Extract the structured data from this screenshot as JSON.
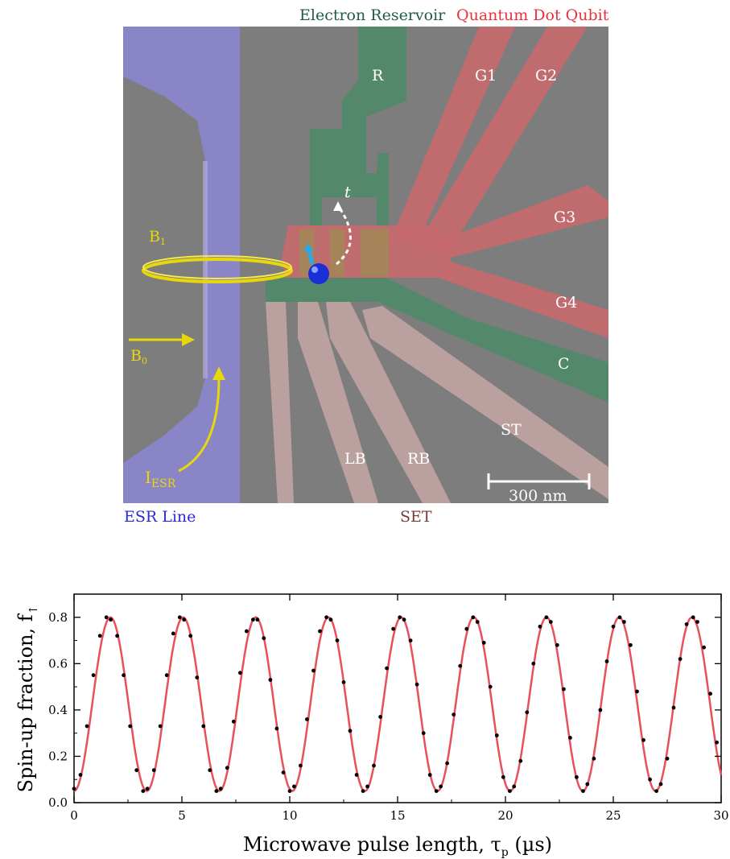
{
  "figure_top": {
    "header_reservoir": "Electron Reservoir",
    "header_qubit": "Quantum Dot Qubit",
    "gates": {
      "R": "R",
      "G1": "G1",
      "G2": "G2",
      "G3": "G3",
      "G4": "G4",
      "C": "C",
      "ST": "ST",
      "LB": "LB",
      "RB": "RB"
    },
    "field_b1": "B",
    "field_b1_sub": "1",
    "field_b0": "B",
    "field_b0_sub": "0",
    "current_main": "I",
    "current_sub": "ESR",
    "tunnel_label": "t",
    "scale_bar": "300 nm",
    "esr_line_label": "ESR Line",
    "set_label": "SET",
    "colors": {
      "substrate": "#7d7d7d",
      "esr_line": "#8a86cc",
      "reservoir": "#4f8a68",
      "qubit_gates": "#c66a6e",
      "set_gates": "#bfa3a1",
      "field_ring": "#e8d80a",
      "header_reservoir": "#1e5c46",
      "header_qubit": "#e8323c",
      "esr_label": "#2a2ad6",
      "set_text": "#7a3a3a"
    }
  },
  "chart_data": {
    "type": "scatter",
    "xlabel_main": "Microwave pulse length, τ",
    "xlabel_sub": "p",
    "xlabel_unit": " (µs)",
    "ylabel_main": "Spin-up fraction, f",
    "ylabel_sub": "↑",
    "xlim": [
      0,
      30
    ],
    "ylim": [
      0.0,
      0.9
    ],
    "xticks": [
      0,
      5,
      10,
      15,
      20,
      25,
      30
    ],
    "xtick_labels": [
      "0",
      "5",
      "10",
      "15",
      "20",
      "25",
      "30"
    ],
    "yticks": [
      0.0,
      0.2,
      0.4,
      0.6,
      0.8
    ],
    "ytick_labels": [
      "0.0",
      "0.2",
      "0.4",
      "0.6",
      "0.8"
    ],
    "series": [
      {
        "kind": "data points",
        "color": "#000000",
        "x": [
          0.0,
          0.3,
          0.6,
          0.9,
          1.2,
          1.5,
          1.7,
          2.0,
          2.3,
          2.6,
          2.9,
          3.2,
          3.4,
          3.7,
          4.0,
          4.3,
          4.6,
          4.9,
          5.1,
          5.4,
          5.7,
          6.0,
          6.3,
          6.6,
          6.8,
          7.1,
          7.4,
          7.7,
          8.0,
          8.3,
          8.5,
          8.8,
          9.1,
          9.4,
          9.7,
          10.0,
          10.2,
          10.5,
          10.8,
          11.1,
          11.4,
          11.7,
          11.9,
          12.2,
          12.5,
          12.8,
          13.1,
          13.4,
          13.6,
          13.9,
          14.2,
          14.5,
          14.8,
          15.1,
          15.3,
          15.6,
          15.9,
          16.2,
          16.5,
          16.8,
          17.0,
          17.3,
          17.6,
          17.9,
          18.2,
          18.5,
          18.7,
          19.0,
          19.3,
          19.6,
          19.9,
          20.2,
          20.4,
          20.7,
          21.0,
          21.3,
          21.6,
          21.9,
          22.1,
          22.4,
          22.7,
          23.0,
          23.3,
          23.6,
          23.8,
          24.1,
          24.4,
          24.7,
          25.0,
          25.3,
          25.5,
          25.8,
          26.1,
          26.4,
          26.7,
          27.0,
          27.2,
          27.5,
          27.8,
          28.1,
          28.4,
          28.7,
          28.9,
          29.2,
          29.5,
          29.8
        ],
        "y": [
          0.06,
          0.12,
          0.33,
          0.55,
          0.72,
          0.8,
          0.79,
          0.72,
          0.55,
          0.33,
          0.14,
          0.05,
          0.06,
          0.14,
          0.33,
          0.55,
          0.73,
          0.8,
          0.79,
          0.72,
          0.54,
          0.33,
          0.14,
          0.05,
          0.06,
          0.15,
          0.35,
          0.56,
          0.74,
          0.79,
          0.79,
          0.71,
          0.53,
          0.32,
          0.13,
          0.05,
          0.07,
          0.16,
          0.36,
          0.57,
          0.74,
          0.8,
          0.79,
          0.7,
          0.52,
          0.31,
          0.12,
          0.05,
          0.07,
          0.16,
          0.37,
          0.58,
          0.75,
          0.8,
          0.79,
          0.7,
          0.51,
          0.3,
          0.12,
          0.05,
          0.07,
          0.17,
          0.38,
          0.59,
          0.75,
          0.8,
          0.78,
          0.69,
          0.5,
          0.29,
          0.11,
          0.05,
          0.07,
          0.18,
          0.39,
          0.6,
          0.76,
          0.8,
          0.78,
          0.68,
          0.49,
          0.28,
          0.11,
          0.05,
          0.08,
          0.19,
          0.4,
          0.61,
          0.76,
          0.8,
          0.78,
          0.68,
          0.48,
          0.27,
          0.1,
          0.05,
          0.08,
          0.19,
          0.41,
          0.62,
          0.77,
          0.8,
          0.78,
          0.67,
          0.47,
          0.26
        ]
      },
      {
        "kind": "fit",
        "color": "#e8505a",
        "formula": "0.425 - 0.375*cos(2*pi*x/3.37)"
      }
    ],
    "grid": false,
    "legend": "none"
  }
}
